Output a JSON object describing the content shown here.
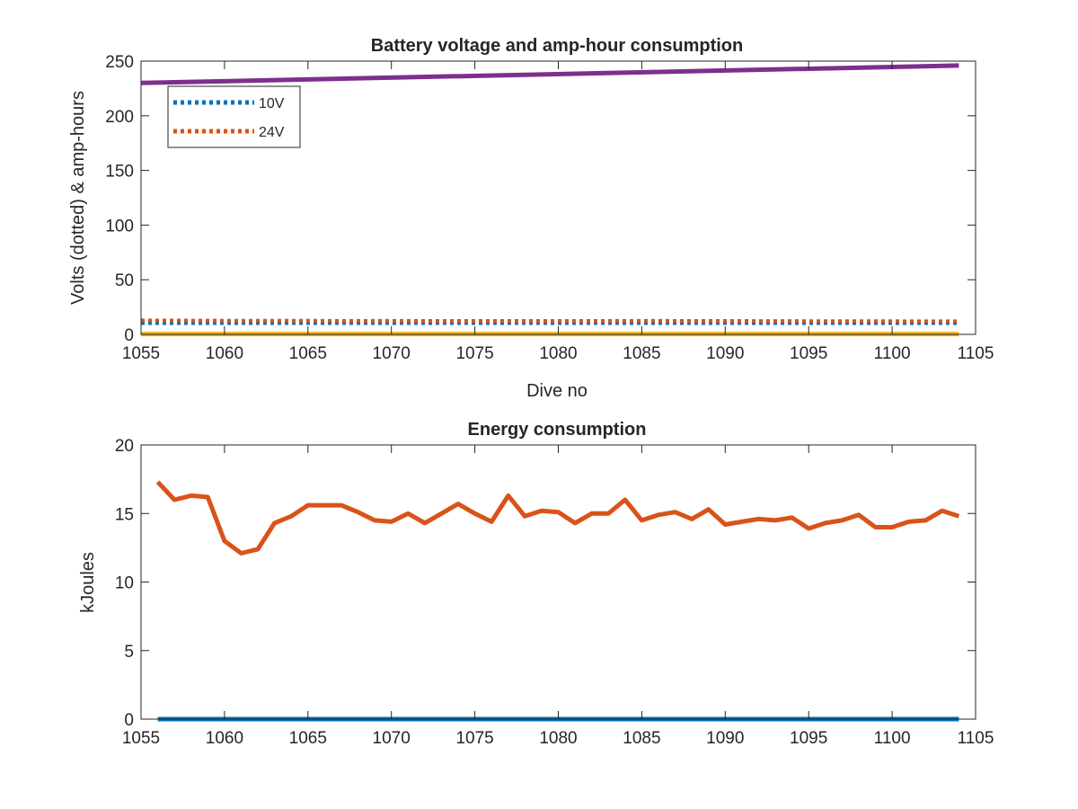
{
  "chart_data": [
    {
      "type": "line",
      "title": "Battery voltage and amp-hour consumption",
      "xlabel": "Dive no",
      "ylabel": "Volts (dotted) & amp-hours",
      "xlim": [
        1055,
        1105
      ],
      "ylim": [
        0,
        250
      ],
      "xticks": [
        "1055",
        "1060",
        "1065",
        "1070",
        "1075",
        "1080",
        "1085",
        "1090",
        "1095",
        "1100",
        "1105"
      ],
      "yticks": [
        "0",
        "50",
        "100",
        "150",
        "200",
        "250"
      ],
      "grid": false,
      "legend_position": "top-left",
      "series": [
        {
          "name": "10V",
          "style": "dotted",
          "color": "#0072BD",
          "x": [
            1055,
            1104
          ],
          "y": [
            10.3,
            10.3
          ]
        },
        {
          "name": "24V",
          "style": "dotted",
          "color": "#D95319",
          "x": [
            1055,
            1060,
            1065,
            1070,
            1075,
            1080,
            1085,
            1090,
            1095,
            1100,
            1104
          ],
          "y": [
            12.8,
            12.6,
            12.5,
            12.4,
            12.3,
            12.3,
            12.4,
            12.3,
            12.2,
            12.1,
            12.0
          ]
        },
        {
          "style": "solid",
          "color": "#7E2F8E",
          "x": [
            1055,
            1104
          ],
          "y": [
            230,
            246
          ]
        },
        {
          "style": "solid",
          "color": "#EDB120",
          "x": [
            1055,
            1104
          ],
          "y": [
            0.3,
            0.3
          ]
        }
      ]
    },
    {
      "type": "line",
      "title": "Energy consumption",
      "ylabel": "kJoules",
      "xlim": [
        1055,
        1105
      ],
      "ylim": [
        0,
        20
      ],
      "xticks": [
        "1055",
        "1060",
        "1065",
        "1070",
        "1075",
        "1080",
        "1085",
        "1090",
        "1095",
        "1100",
        "1105"
      ],
      "yticks": [
        "0",
        "5",
        "10",
        "15",
        "20"
      ],
      "grid": false,
      "series": [
        {
          "style": "solid",
          "color": "#D95319",
          "x": [
            1056,
            1057,
            1058,
            1059,
            1060,
            1061,
            1062,
            1063,
            1064,
            1065,
            1066,
            1067,
            1068,
            1069,
            1070,
            1071,
            1072,
            1073,
            1074,
            1075,
            1076,
            1077,
            1078,
            1079,
            1080,
            1081,
            1082,
            1083,
            1084,
            1085,
            1086,
            1087,
            1088,
            1089,
            1090,
            1091,
            1092,
            1093,
            1094,
            1095,
            1096,
            1097,
            1098,
            1099,
            1100,
            1101,
            1102,
            1103,
            1104
          ],
          "y": [
            17.3,
            16.0,
            16.3,
            16.2,
            13.0,
            12.1,
            12.4,
            14.3,
            14.8,
            15.6,
            15.6,
            15.6,
            15.1,
            14.5,
            14.4,
            15.0,
            14.3,
            15.0,
            15.7,
            15.0,
            14.4,
            16.3,
            14.8,
            15.2,
            15.1,
            14.3,
            15.0,
            15.0,
            16.0,
            14.5,
            14.9,
            15.1,
            14.6,
            15.3,
            14.2,
            14.4,
            14.6,
            14.5,
            14.7,
            13.9,
            14.3,
            14.5,
            14.9,
            14.0,
            14.0,
            14.4,
            14.5,
            15.2,
            14.8
          ]
        },
        {
          "style": "solid",
          "color": "#0072BD",
          "x": [
            1056,
            1104
          ],
          "y": [
            0.0,
            0.0
          ]
        }
      ]
    }
  ]
}
